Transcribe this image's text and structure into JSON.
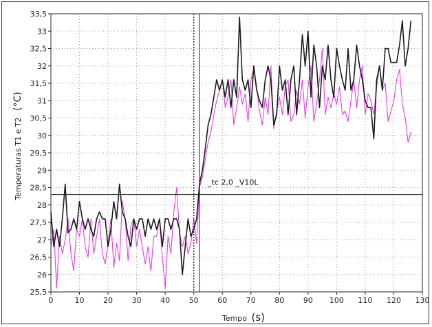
{
  "chart_data": {
    "type": "line",
    "xlabel_text": "Tempo",
    "xlabel_unit": "(s)",
    "ylabel_text": "Temperaturas T1 e T2",
    "ylabel_unit": "(°C)",
    "xlim": [
      0,
      130
    ],
    "ylim": [
      25.5,
      33.5
    ],
    "x_ticks": [
      "0",
      "10",
      "20",
      "30",
      "40",
      "50",
      "60",
      "70",
      "80",
      "90",
      "100",
      "110",
      "120",
      "130"
    ],
    "y_ticks": [
      "25,5",
      "26",
      "26,5",
      "27",
      "27,5",
      "28",
      "28,5",
      "29",
      "29,5",
      "30",
      "30,5",
      "31",
      "31,5",
      "32",
      "32,5",
      "33",
      "33,5"
    ],
    "grid": true,
    "annotation": "_tc 2,0 _V10L",
    "cursor": {
      "x": 52,
      "y": 28.3
    },
    "dotted_marker_x": 50,
    "series": [
      {
        "color": "#1a1a1a",
        "x": [
          0,
          1,
          2,
          3,
          4,
          5,
          6,
          7,
          8,
          9,
          10,
          11,
          12,
          13,
          14,
          15,
          16,
          17,
          18,
          19,
          20,
          21,
          22,
          23,
          24,
          25,
          26,
          27,
          28,
          29,
          30,
          31,
          32,
          33,
          34,
          35,
          36,
          37,
          38,
          39,
          40,
          41,
          42,
          43,
          44,
          45,
          46,
          47,
          48,
          49,
          50,
          51,
          52,
          53,
          54,
          55,
          56,
          57,
          58,
          59,
          60,
          61,
          62,
          63,
          64,
          65,
          66,
          67,
          68,
          69,
          70,
          71,
          72,
          73,
          74,
          75,
          76,
          77,
          78,
          79,
          80,
          81,
          82,
          83,
          84,
          85,
          86,
          87,
          88,
          89,
          90,
          91,
          92,
          93,
          94,
          95,
          96,
          97,
          98,
          99,
          100,
          101,
          102,
          103,
          104,
          105,
          106,
          107,
          108,
          109,
          110,
          111,
          112,
          113,
          114,
          115,
          116,
          117,
          118,
          119,
          120,
          121,
          122,
          123,
          124,
          125,
          126
        ],
        "values": [
          27.8,
          26.8,
          27.3,
          26.8,
          27.6,
          28.6,
          27.2,
          27.3,
          27.6,
          27.3,
          28.1,
          27.6,
          27.3,
          27.6,
          27.3,
          27.1,
          27.6,
          27.8,
          27.6,
          27.6,
          26.8,
          27.3,
          28.1,
          27.6,
          28.6,
          27.8,
          27.6,
          27.1,
          26.8,
          27.6,
          27.3,
          27.6,
          27.6,
          27.1,
          27.6,
          27.3,
          27.6,
          27.3,
          27.6,
          26.8,
          27.6,
          27.6,
          27.3,
          27.6,
          27.6,
          27.3,
          26.0,
          26.8,
          27.6,
          27.1,
          27.3,
          27.6,
          28.6,
          29.0,
          29.6,
          30.3,
          30.6,
          31.1,
          31.6,
          31.3,
          31.6,
          31.1,
          31.6,
          30.8,
          31.6,
          31.1,
          33.4,
          31.6,
          31.3,
          31.6,
          30.8,
          32.0,
          31.3,
          31.0,
          30.8,
          31.6,
          32.0,
          31.6,
          30.3,
          30.6,
          32.0,
          31.3,
          31.6,
          30.6,
          31.6,
          32.0,
          30.6,
          31.6,
          32.9,
          32.0,
          33.0,
          31.1,
          32.6,
          32.0,
          30.8,
          32.0,
          31.6,
          32.6,
          31.6,
          31.1,
          32.5,
          32.0,
          31.6,
          31.3,
          32.5,
          31.3,
          31.6,
          32.6,
          32.0,
          31.6,
          31.0,
          30.8,
          30.8,
          29.9,
          31.6,
          32.0,
          31.3,
          32.5,
          32.5,
          32.1,
          32.1,
          32.1,
          32.6,
          33.3,
          32.0,
          32.5,
          33.3
        ]
      },
      {
        "color": "#e040e0",
        "x": [
          0,
          1,
          2,
          3,
          4,
          5,
          6,
          7,
          8,
          9,
          10,
          11,
          12,
          13,
          14,
          15,
          16,
          17,
          18,
          19,
          20,
          21,
          22,
          23,
          24,
          25,
          26,
          27,
          28,
          29,
          30,
          31,
          32,
          33,
          34,
          35,
          36,
          37,
          38,
          39,
          40,
          41,
          42,
          43,
          44,
          45,
          46,
          47,
          48,
          49,
          50,
          51,
          52,
          53,
          54,
          55,
          56,
          57,
          58,
          59,
          60,
          61,
          62,
          63,
          64,
          65,
          66,
          67,
          68,
          69,
          70,
          71,
          72,
          73,
          74,
          75,
          76,
          77,
          78,
          79,
          80,
          81,
          82,
          83,
          84,
          85,
          86,
          87,
          88,
          89,
          90,
          91,
          92,
          93,
          94,
          95,
          96,
          97,
          98,
          99,
          100,
          101,
          102,
          103,
          104,
          105,
          106,
          107,
          108,
          109,
          110,
          111,
          112,
          113,
          114,
          115,
          116,
          117,
          118,
          119,
          120,
          121,
          122,
          123,
          124,
          125,
          126
        ],
        "values": [
          26.8,
          27.3,
          25.6,
          27.1,
          26.6,
          27.0,
          27.6,
          26.6,
          26.1,
          27.3,
          27.1,
          27.6,
          26.8,
          26.5,
          27.6,
          26.6,
          27.1,
          27.6,
          26.6,
          26.3,
          26.9,
          27.6,
          26.2,
          26.9,
          26.4,
          28.1,
          27.6,
          26.4,
          27.4,
          27.6,
          26.8,
          27.3,
          26.8,
          26.3,
          26.8,
          26.1,
          27.1,
          27.1,
          27.6,
          26.5,
          25.6,
          27.1,
          26.6,
          27.8,
          28.5,
          27.2,
          26.8,
          27.1,
          26.6,
          26.9,
          27.6,
          26.9,
          28.5,
          28.8,
          29.3,
          29.8,
          30.1,
          30.6,
          31.0,
          31.3,
          31.6,
          30.8,
          31.1,
          31.6,
          30.3,
          30.8,
          31.4,
          30.9,
          31.2,
          30.4,
          31.6,
          31.9,
          31.4,
          30.7,
          30.3,
          31.1,
          30.6,
          32.0,
          30.2,
          30.7,
          31.1,
          30.6,
          31.4,
          31.6,
          30.4,
          30.6,
          31.3,
          30.9,
          31.6,
          30.5,
          31.4,
          32.0,
          30.4,
          30.9,
          31.6,
          32.5,
          30.6,
          31.1,
          30.8,
          31.2,
          30.9,
          31.4,
          30.6,
          30.7,
          30.4,
          31.0,
          31.6,
          30.8,
          31.6,
          32.0,
          30.6,
          31.2,
          31.0,
          30.6,
          31.4,
          32.0,
          31.3,
          31.5,
          30.4,
          30.7,
          31.0,
          31.6,
          31.9,
          30.9,
          30.5,
          29.8,
          30.1
        ]
      }
    ]
  }
}
